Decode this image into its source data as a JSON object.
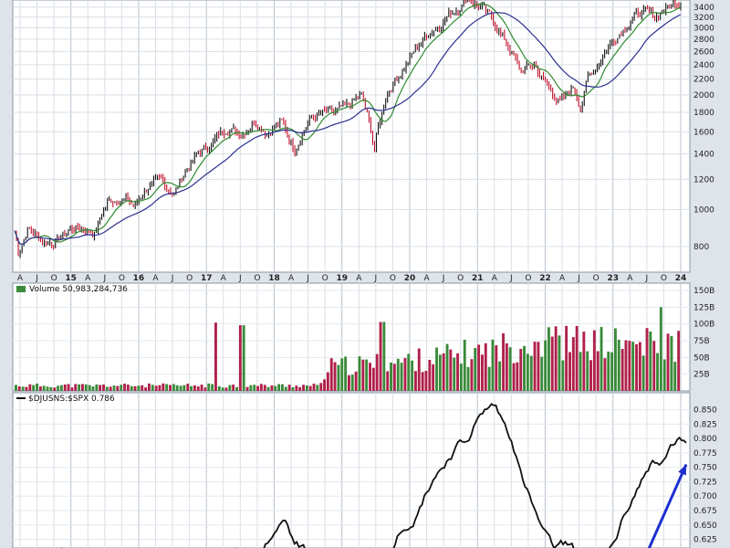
{
  "chart_data": [
    {
      "type": "line",
      "panel": "price",
      "title": "",
      "yscale": "log",
      "ylim": [
        700,
        3550
      ],
      "y_ticks": [
        800,
        1000,
        1200,
        1400,
        1600,
        1800,
        2000,
        2200,
        2400,
        2600,
        2800,
        3000,
        3200,
        3400
      ],
      "x_tick_labels": [
        "A",
        "J",
        "O",
        "15",
        "A",
        "J",
        "O",
        "16",
        "A",
        "J",
        "O",
        "17",
        "A",
        "J",
        "O",
        "18",
        "A",
        "J",
        "O",
        "19",
        "A",
        "J",
        "O",
        "20",
        "A",
        "J",
        "O",
        "21",
        "A",
        "J",
        "O",
        "22",
        "A",
        "J",
        "O",
        "23",
        "A",
        "J",
        "O",
        "24"
      ],
      "grid": true,
      "moving_averages": [
        {
          "color": "#2e8b2e"
        },
        {
          "color": "#2b2f8f"
        }
      ],
      "series_points": [
        [
          0.0,
          880
        ],
        [
          0.3,
          770
        ],
        [
          1,
          900
        ],
        [
          2,
          830
        ],
        [
          3,
          820
        ],
        [
          4,
          880
        ],
        [
          5,
          900
        ],
        [
          6,
          870
        ],
        [
          7,
          1050
        ],
        [
          8,
          1080
        ],
        [
          9,
          1020
        ],
        [
          10,
          1150
        ],
        [
          11,
          1180
        ],
        [
          12,
          1100
        ],
        [
          13,
          1300
        ],
        [
          14,
          1420
        ],
        [
          15,
          1520
        ],
        [
          16,
          1650
        ],
        [
          17,
          1580
        ],
        [
          18,
          1720
        ],
        [
          19,
          1600
        ],
        [
          20,
          1700
        ],
        [
          21,
          1450
        ],
        [
          22,
          1700
        ],
        [
          23,
          1780
        ],
        [
          24,
          1790
        ],
        [
          25,
          1850
        ],
        [
          26,
          2000
        ],
        [
          26.5,
          1750
        ],
        [
          27,
          1450
        ],
        [
          27.5,
          1750
        ],
        [
          28,
          2050
        ],
        [
          29,
          2300
        ],
        [
          30,
          2600
        ],
        [
          31,
          2900
        ],
        [
          32,
          3100
        ],
        [
          33,
          3350
        ],
        [
          34,
          3600
        ],
        [
          35,
          3400
        ],
        [
          36,
          3100
        ],
        [
          37,
          2700
        ],
        [
          38,
          2300
        ],
        [
          39,
          2400
        ],
        [
          40,
          2100
        ],
        [
          41,
          1900
        ],
        [
          42,
          2100
        ],
        [
          42.5,
          1850
        ],
        [
          43,
          2200
        ],
        [
          44,
          2500
        ],
        [
          45,
          2800
        ],
        [
          46,
          3100
        ],
        [
          47,
          3300
        ],
        [
          48,
          3200
        ],
        [
          49,
          3400
        ],
        [
          50,
          3550
        ]
      ]
    },
    {
      "type": "bar",
      "panel": "volume",
      "title": "Volume 50,983,284,736",
      "ylim": [
        0,
        150
      ],
      "y_ticks": [
        25,
        50,
        75,
        100,
        125,
        150
      ],
      "y_tick_labels": [
        "25B",
        "50B",
        "75B",
        "100B",
        "125B",
        "150B"
      ],
      "colors": {
        "up": "#3a8a3a",
        "down": "#b0204a"
      },
      "volume_profile": [
        [
          0,
          8
        ],
        [
          23,
          8
        ],
        [
          23.5,
          35
        ],
        [
          30,
          45
        ],
        [
          36,
          60
        ],
        [
          39,
          75
        ],
        [
          43,
          70
        ],
        [
          50,
          68
        ]
      ],
      "spikes": [
        [
          30,
          102
        ],
        [
          34,
          98
        ],
        [
          55,
          103
        ],
        [
          80,
          95
        ],
        [
          97,
          125
        ],
        [
          101,
          148
        ],
        [
          102,
          120
        ]
      ]
    },
    {
      "type": "line",
      "panel": "ratio",
      "title": "$DJUSNS:$SPX 0.786",
      "ylim": [
        0.61,
        0.87
      ],
      "y_ticks": [
        0.625,
        0.65,
        0.675,
        0.7,
        0.725,
        0.75,
        0.775,
        0.8,
        0.825,
        0.85
      ],
      "y_tick_labels": [
        "0.625",
        "0.650",
        "0.675",
        "0.700",
        "0.725",
        "0.750",
        "0.775",
        "0.800",
        "0.825",
        "0.850"
      ],
      "series_points": [
        [
          0,
          0.6
        ],
        [
          28,
          0.6
        ],
        [
          30,
          0.64
        ],
        [
          31,
          0.66
        ],
        [
          32,
          0.62
        ],
        [
          34,
          0.6
        ],
        [
          43,
          0.6
        ],
        [
          44,
          0.64
        ],
        [
          46,
          0.66
        ],
        [
          47,
          0.7
        ],
        [
          48,
          0.73
        ],
        [
          49,
          0.75
        ],
        [
          50,
          0.77
        ],
        [
          51,
          0.79
        ],
        [
          52,
          0.8
        ],
        [
          53,
          0.83
        ],
        [
          54,
          0.85
        ],
        [
          55,
          0.86
        ],
        [
          56,
          0.83
        ],
        [
          57,
          0.8
        ],
        [
          58,
          0.74
        ],
        [
          59,
          0.7
        ],
        [
          60,
          0.66
        ],
        [
          61,
          0.63
        ],
        [
          62,
          0.61
        ],
        [
          63,
          0.62
        ],
        [
          65,
          0.6
        ],
        [
          68,
          0.6
        ],
        [
          69,
          0.63
        ],
        [
          70,
          0.67
        ],
        [
          71,
          0.7
        ],
        [
          72,
          0.73
        ],
        [
          73,
          0.76
        ],
        [
          74,
          0.75
        ],
        [
          75,
          0.78
        ],
        [
          76,
          0.8
        ],
        [
          77,
          0.786
        ]
      ],
      "annotation_arrow": {
        "color": "#1c2fd0",
        "from": [
          72,
          0.6
        ],
        "to": [
          77,
          0.755
        ]
      }
    }
  ]
}
